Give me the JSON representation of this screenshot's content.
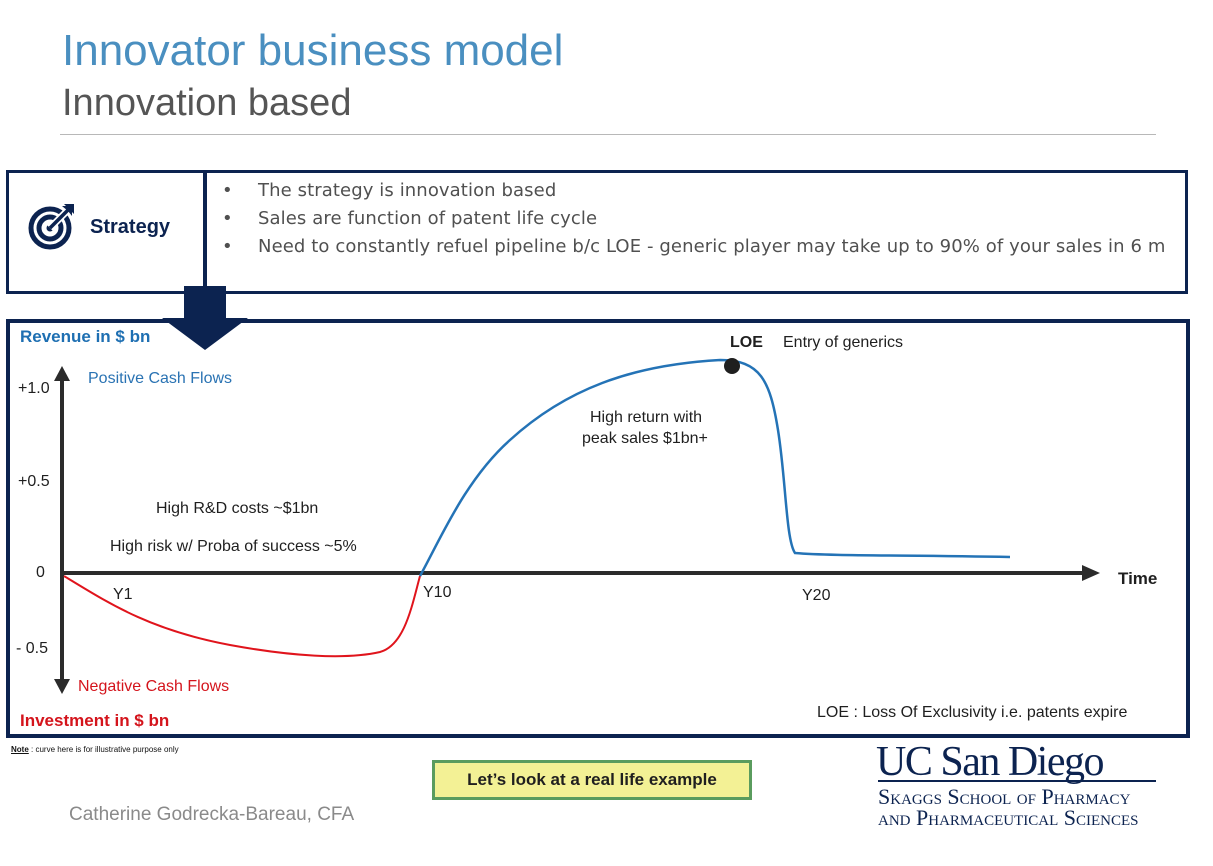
{
  "header": {
    "title": "Innovator business model",
    "subtitle": "Innovation based"
  },
  "strategy": {
    "label": "Strategy",
    "icon": "target-arrow-icon",
    "bullet_char": "•",
    "bullets": [
      "The strategy is innovation based",
      "Sales are function of patent life cycle",
      "Need to constantly refuel pipeline b/c LOE - generic player may take up to 90% of your sales in 6 m"
    ]
  },
  "diagram": {
    "y_axis_top_label": "Revenue in $ bn",
    "y_axis_bottom_label": "Investment in $ bn",
    "positive_label": "Positive Cash Flows",
    "negative_label": "Negative Cash Flows",
    "x_axis_label": "Time",
    "y_ticks": [
      "+1.0",
      "+0.5",
      "0",
      "- 0.5"
    ],
    "x_ticks": [
      "Y1",
      "Y10",
      "Y20"
    ],
    "annotations": {
      "rd_costs": "High R&D costs ~$1bn",
      "risk": "High risk w/ Proba of success ~5%",
      "high_return_1": "High return with",
      "high_return_2": "peak sales $1bn+",
      "loe_title": "LOE",
      "loe_text": "Entry of generics",
      "loe_definition": "LOE : Loss Of Exclusivity i.e. patents expire"
    },
    "colors": {
      "positive_curve": "#2473b6",
      "negative_curve": "#e0141c",
      "axis": "#2b2b2b",
      "frame": "#0c2350"
    }
  },
  "footer": {
    "note_label": "Note",
    "note_text": " : curve here is for illustrative purpose only",
    "example_button": "Let’s look at a real life example",
    "author": "Catherine Godrecka-Bareau, CFA",
    "logo_main": "UC San Diego",
    "logo_line1": "Skaggs School of Pharmacy",
    "logo_line2": "and Pharmaceutical Sciences"
  }
}
